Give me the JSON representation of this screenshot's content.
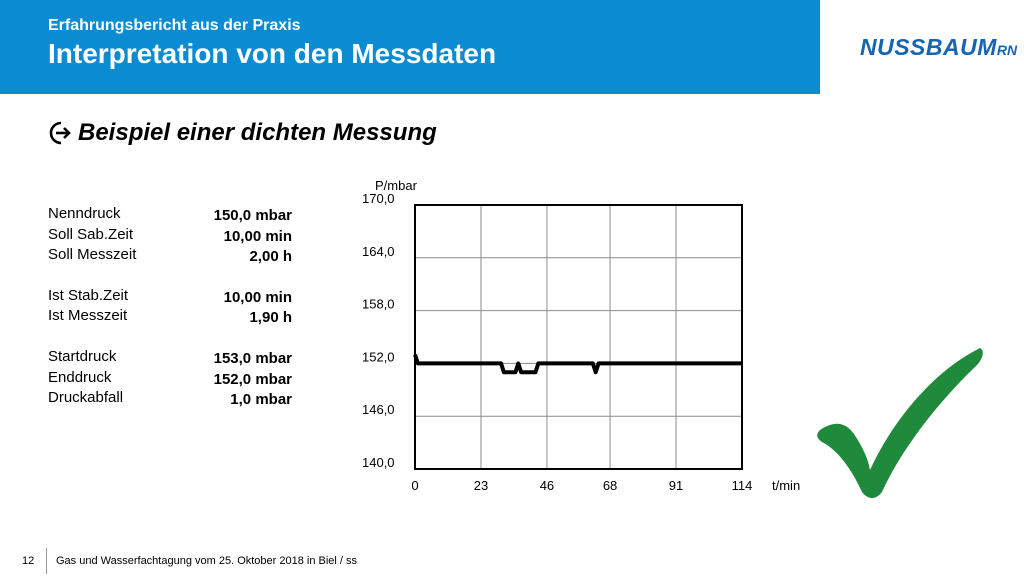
{
  "header": {
    "subtitle": "Erfahrungsbericht aus der Praxis",
    "title": "Interpretation von den Messdaten",
    "band_color": "#0a8bd2"
  },
  "logo": {
    "name": "NUSSBAUM",
    "suffix": "RN",
    "color": "#1565b0"
  },
  "bullet": {
    "icon": "arrow-right-circle-icon",
    "text": "Beispiel einer dichten Messung"
  },
  "parameters": [
    {
      "label": "Nenndruck",
      "value": "150,0 mbar"
    },
    {
      "label": "Soll Sab.Zeit",
      "value": "10,00 min"
    },
    {
      "label": "Soll Messzeit",
      "value": "2,00 h"
    },
    {
      "label": "Ist Stab.Zeit",
      "value": "10,00 min"
    },
    {
      "label": "Ist Messzeit",
      "value": "1,90 h"
    },
    {
      "label": "Startdruck",
      "value": "153,0 mbar"
    },
    {
      "label": "Enddruck",
      "value": "152,0 mbar"
    },
    {
      "label": "Druckabfall",
      "value": "1,0 mbar"
    }
  ],
  "chart_data": {
    "type": "line",
    "xlabel": "t/min",
    "ylabel": "P/mbar",
    "xlim": [
      0,
      114
    ],
    "ylim": [
      140,
      170
    ],
    "x_ticks": [
      0,
      23,
      46,
      68,
      91,
      114
    ],
    "x_tick_labels": [
      "0",
      "23",
      "46",
      "68",
      "91",
      "114"
    ],
    "y_ticks": [
      140,
      146,
      152,
      158,
      164,
      170
    ],
    "y_tick_labels": [
      "140,0",
      "146,0",
      "152,0",
      "158,0",
      "164,0",
      "170,0"
    ],
    "grid": true,
    "series": [
      {
        "color": "#000000",
        "points": [
          [
            0,
            153.0
          ],
          [
            1,
            152.0
          ],
          [
            30,
            152.0
          ],
          [
            31,
            151.0
          ],
          [
            35,
            151.0
          ],
          [
            36,
            152.0
          ],
          [
            37,
            151.0
          ],
          [
            42,
            151.0
          ],
          [
            43,
            152.0
          ],
          [
            62,
            152.0
          ],
          [
            63,
            151.0
          ],
          [
            64,
            152.0
          ],
          [
            114,
            152.0
          ]
        ]
      }
    ]
  },
  "checkmark": {
    "icon": "checkmark-icon",
    "color": "#1f8a3c"
  },
  "footer": {
    "page": "12",
    "text": "Gas und Wasserfachtagung vom 25. Oktober 2018 in Biel / ss"
  }
}
